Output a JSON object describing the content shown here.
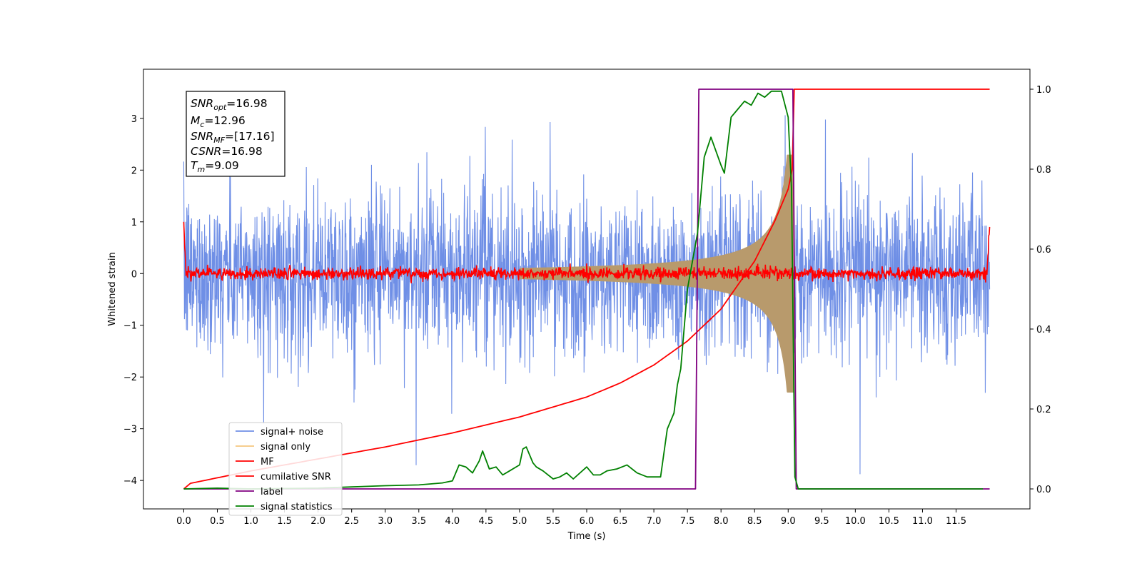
{
  "chart_data": {
    "type": "line",
    "xlabel": "Time (s)",
    "ylabel": "Whitened strain",
    "xlim": [
      -0.6,
      12.6
    ],
    "ylim": [
      -4.55,
      3.95
    ],
    "ylim_right": [
      -0.05,
      1.05
    ],
    "xticks": [
      "0.0",
      "0.5",
      "1.0",
      "1.5",
      "2.0",
      "2.5",
      "3.0",
      "3.5",
      "4.0",
      "4.5",
      "5.0",
      "5.5",
      "6.0",
      "6.5",
      "7.0",
      "7.5",
      "8.0",
      "8.5",
      "9.0",
      "9.5",
      "10.0",
      "10.5",
      "11.0",
      "11.5"
    ],
    "yticks": [
      "3",
      "2",
      "1",
      "0",
      "−1",
      "−2",
      "−3",
      "−4"
    ],
    "yticks_right": [
      "1.0",
      "0.8",
      "0.6",
      "0.4",
      "0.2",
      "0.0"
    ],
    "grid": false,
    "legend_position": "lower-left",
    "colors": {
      "signal_noise": "#6f8fe6",
      "signal_only": "#f5c77e",
      "mf": "#ff0000",
      "cumulative_snr": "#ff0000",
      "label": "#800080",
      "signal_statistics": "#008000",
      "overlap": "#b89a6c"
    },
    "stats_box": {
      "snr_opt": {
        "name": "SNR",
        "sub": "opt",
        "value": "=16.98"
      },
      "mc": {
        "name": "M",
        "sub": "c",
        "value": "=12.96"
      },
      "snr_mf": {
        "name": "SNR",
        "sub": "MF",
        "value": "=[17.16]"
      },
      "csnr": {
        "name": "CSNR",
        "value": "=16.98"
      },
      "tm": {
        "name": "T",
        "sub": "m",
        "value": "=9.09"
      }
    },
    "series": [
      {
        "name": "signal+ noise",
        "axis": "left",
        "description_level": "gaussian noise, std ~0.75, spikes to ±3.6",
        "t_range": [
          0.0,
          12.0
        ]
      },
      {
        "name": "signal only",
        "axis": "left",
        "chirp_start": 5.0,
        "chirp_end": 9.09,
        "peak_amplitude": 2.3
      },
      {
        "name": "MF",
        "axis": "left",
        "baseline": 0.0,
        "noise_amplitude": 0.06,
        "edge_value": 1.0
      },
      {
        "name": "cumilative SNR",
        "axis": "right",
        "t": [
          0.0,
          0.1,
          1.0,
          2.0,
          3.0,
          4.0,
          5.0,
          6.0,
          6.5,
          7.0,
          7.5,
          8.0,
          8.5,
          8.8,
          9.0,
          9.06,
          9.09,
          12.0
        ],
        "values": [
          0.0,
          0.014,
          0.045,
          0.075,
          0.105,
          0.14,
          0.18,
          0.23,
          0.265,
          0.31,
          0.37,
          0.45,
          0.57,
          0.67,
          0.75,
          0.8,
          1.0,
          1.0
        ]
      },
      {
        "name": "label",
        "axis": "right",
        "t": [
          0.0,
          7.62,
          7.67,
          9.07,
          9.12,
          12.0
        ],
        "values": [
          0.0,
          0.0,
          1.0,
          1.0,
          0.0,
          0.0
        ]
      },
      {
        "name": "signal statistics",
        "axis": "right",
        "t": [
          0.0,
          0.5,
          1.0,
          2.0,
          2.5,
          3.0,
          3.5,
          3.85,
          4.0,
          4.1,
          4.2,
          4.3,
          4.4,
          4.45,
          4.55,
          4.65,
          4.75,
          4.85,
          5.0,
          5.05,
          5.1,
          5.2,
          5.25,
          5.35,
          5.5,
          5.6,
          5.7,
          5.8,
          6.0,
          6.1,
          6.2,
          6.3,
          6.45,
          6.6,
          6.75,
          6.9,
          7.1,
          7.2,
          7.3,
          7.35,
          7.4,
          7.5,
          7.65,
          7.75,
          7.85,
          8.0,
          8.05,
          8.15,
          8.25,
          8.35,
          8.45,
          8.55,
          8.65,
          8.75,
          8.9,
          9.0,
          9.05,
          9.1,
          9.15,
          11.0,
          11.9
        ],
        "values": [
          0.0,
          0.002,
          0.0,
          0.002,
          0.005,
          0.008,
          0.01,
          0.015,
          0.02,
          0.06,
          0.055,
          0.04,
          0.07,
          0.095,
          0.05,
          0.055,
          0.035,
          0.045,
          0.06,
          0.1,
          0.105,
          0.065,
          0.055,
          0.045,
          0.025,
          0.03,
          0.04,
          0.025,
          0.055,
          0.035,
          0.035,
          0.045,
          0.05,
          0.06,
          0.04,
          0.03,
          0.03,
          0.15,
          0.19,
          0.26,
          0.3,
          0.5,
          0.64,
          0.83,
          0.88,
          0.81,
          0.79,
          0.93,
          0.95,
          0.97,
          0.96,
          0.99,
          0.98,
          0.995,
          0.995,
          0.93,
          0.75,
          0.03,
          0.0,
          0.0,
          0.0
        ]
      }
    ]
  }
}
